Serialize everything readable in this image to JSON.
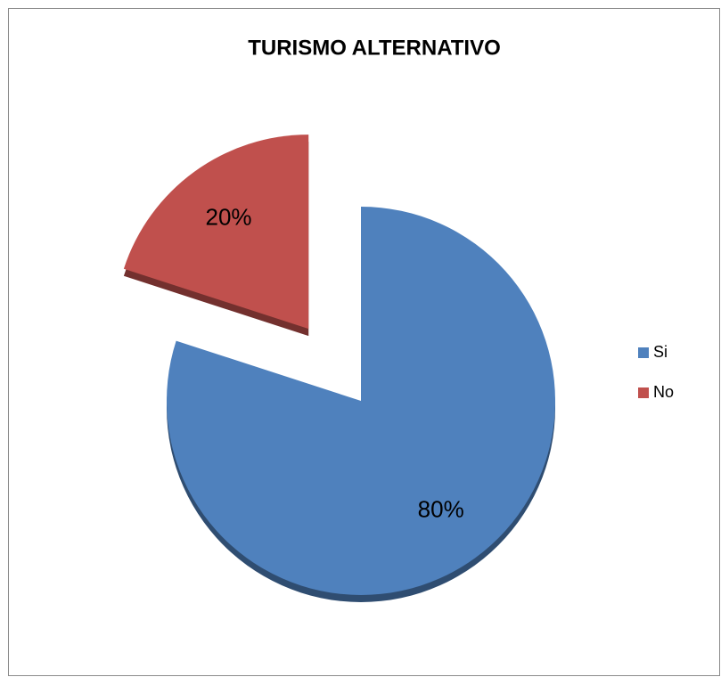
{
  "chart_data": {
    "type": "pie",
    "title": "TURISMO ALTERNATIVO",
    "categories": [
      "Si",
      "No"
    ],
    "values": [
      80,
      20
    ],
    "value_labels": [
      "80%",
      "20%"
    ],
    "colors": [
      "#4f81bd",
      "#c0504d"
    ],
    "exploded": [
      false,
      true
    ],
    "legend": "right"
  }
}
